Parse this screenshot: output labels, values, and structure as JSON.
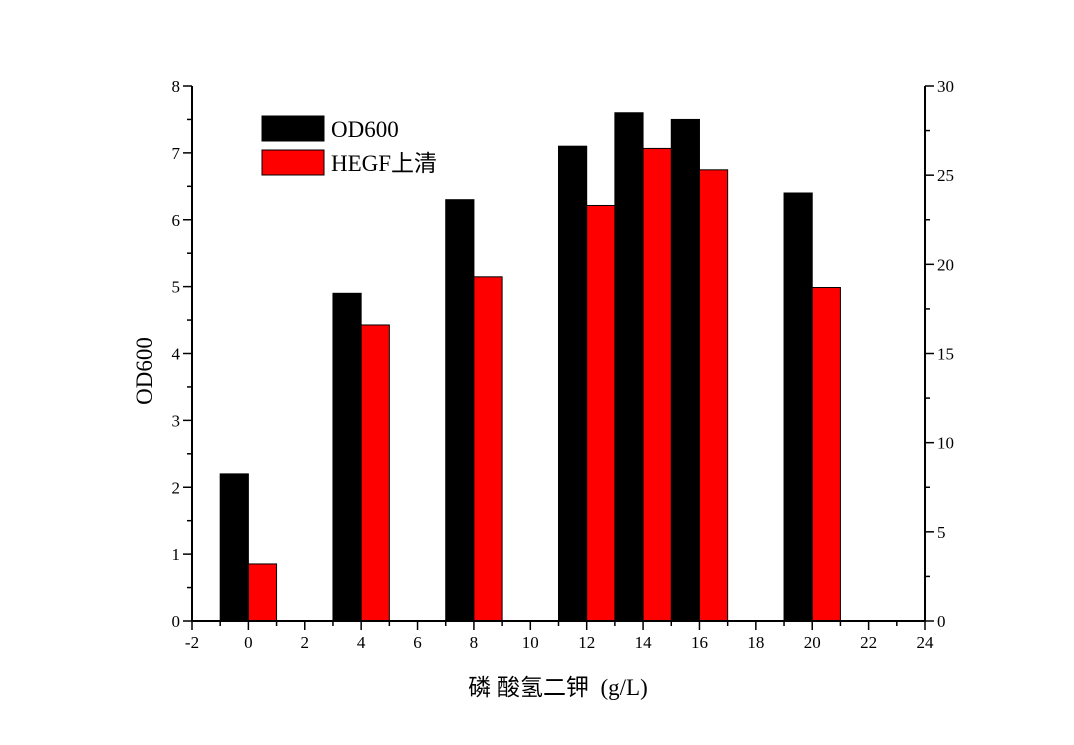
{
  "chart_data": {
    "type": "bar",
    "x": [
      0,
      4,
      8,
      12,
      14,
      16,
      20
    ],
    "series": [
      {
        "name": "OD600",
        "axis": "left",
        "color": "#000000",
        "values": [
          2.2,
          4.9,
          6.3,
          7.1,
          7.6,
          7.5,
          6.4
        ]
      },
      {
        "name": "HEGF上清",
        "axis": "right",
        "color": "#ff0000",
        "values": [
          3.2,
          16.6,
          19.3,
          23.3,
          26.5,
          25.3,
          18.7
        ]
      }
    ],
    "xlabel": "磷 酸氢二钾  (g/L)",
    "ylabel": "OD600",
    "y2label": "",
    "xlim": [
      -2,
      24
    ],
    "ylim": [
      0,
      8
    ],
    "y2lim": [
      0,
      30
    ],
    "xticks": [
      "-2",
      "0",
      "2",
      "4",
      "6",
      "8",
      "10",
      "12",
      "14",
      "16",
      "18",
      "20",
      "22",
      "24"
    ],
    "yticks": [
      "0",
      "1",
      "2",
      "3",
      "4",
      "5",
      "6",
      "7",
      "8"
    ],
    "y2ticks": [
      "0",
      "5",
      "10",
      "15",
      "20",
      "25",
      "30"
    ],
    "legend_position": "top-left",
    "grid": false
  }
}
